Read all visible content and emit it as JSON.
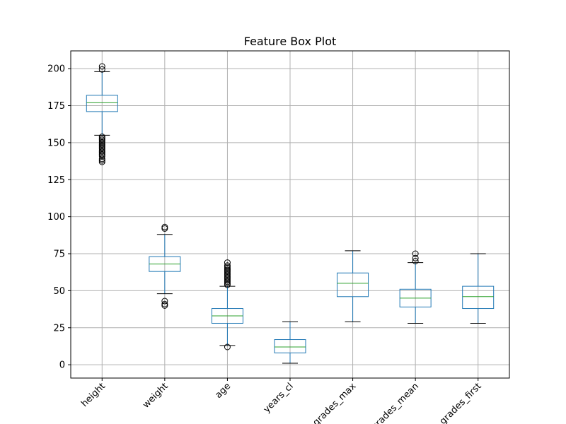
{
  "chart_data": {
    "type": "box",
    "title": "Feature Box Plot",
    "xlabel": "",
    "ylabel": "",
    "ylim": [
      -9,
      212
    ],
    "y_ticks": [
      0,
      25,
      50,
      75,
      100,
      125,
      150,
      175,
      200
    ],
    "grid": true,
    "colors": {
      "box": "#1f77b4",
      "median": "#2ca02c",
      "whisker_cap": "#000000",
      "outlier": "#000000",
      "grid": "#b0b0b0"
    },
    "categories": [
      "height",
      "weight",
      "age",
      "years_cl",
      "grades_max",
      "grades_mean",
      "grades_first"
    ],
    "boxes": [
      {
        "label": "height",
        "whislo": 155,
        "q1": 171,
        "med": 177,
        "q3": 182,
        "whishi": 198,
        "fliers": [
          137,
          138,
          139,
          141,
          142,
          143,
          144,
          145,
          146,
          147,
          148,
          149,
          150,
          151,
          152,
          153,
          154,
          199.5,
          201.5
        ]
      },
      {
        "label": "weight",
        "whislo": 48,
        "q1": 63,
        "med": 68,
        "q3": 73,
        "whishi": 88,
        "fliers": [
          40,
          41,
          43,
          92,
          93
        ]
      },
      {
        "label": "age",
        "whislo": 13,
        "q1": 28,
        "med": 33,
        "q3": 38,
        "whishi": 53,
        "fliers": [
          12,
          54,
          55,
          56,
          57,
          58,
          59,
          60,
          61,
          62,
          63,
          64,
          65,
          66,
          67,
          69
        ]
      },
      {
        "label": "years_cl",
        "whislo": 1,
        "q1": 8,
        "med": 12,
        "q3": 17,
        "whishi": 29,
        "fliers": []
      },
      {
        "label": "grades_max",
        "whislo": 29,
        "q1": 46,
        "med": 55,
        "q3": 62,
        "whishi": 77,
        "fliers": []
      },
      {
        "label": "grades_mean",
        "whislo": 28,
        "q1": 39,
        "med": 45,
        "q3": 51,
        "whishi": 69,
        "fliers": [
          70,
          72,
          75
        ]
      },
      {
        "label": "grades_first",
        "whislo": 28,
        "q1": 38,
        "med": 46,
        "q3": 53,
        "whishi": 75,
        "fliers": []
      }
    ]
  }
}
